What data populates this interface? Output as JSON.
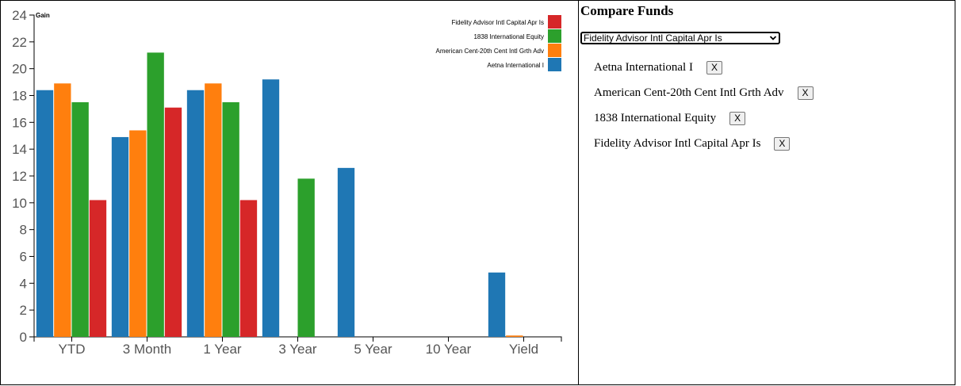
{
  "chart_data": {
    "type": "bar",
    "title": "",
    "xlabel": "",
    "ylabel": "Gain",
    "ylim": [
      0,
      24
    ],
    "yticks": [
      0,
      2,
      4,
      6,
      8,
      10,
      12,
      14,
      16,
      18,
      20,
      22,
      24
    ],
    "categories": [
      "YTD",
      "3 Month",
      "1 Year",
      "3 Year",
      "5 Year",
      "10 Year",
      "Yield"
    ],
    "series": [
      {
        "name": "Aetna International I",
        "color": "#1f77b4",
        "values": [
          18.4,
          14.9,
          18.4,
          19.2,
          12.6,
          0,
          4.8
        ]
      },
      {
        "name": "American Cent-20th Cent Intl Grth Adv",
        "color": "#ff7f0e",
        "values": [
          18.9,
          15.4,
          18.9,
          0,
          0,
          0,
          0.1
        ]
      },
      {
        "name": "1838 International Equity",
        "color": "#2ca02c",
        "values": [
          17.5,
          21.2,
          17.5,
          11.8,
          0,
          0,
          0
        ]
      },
      {
        "name": "Fidelity Advisor Intl Capital Apr Is",
        "color": "#d62728",
        "values": [
          10.2,
          17.1,
          10.2,
          0,
          0,
          0,
          0
        ]
      }
    ],
    "legend_order": [
      3,
      2,
      1,
      0
    ],
    "legend_position": "top-right",
    "grid": false
  },
  "compare": {
    "title": "Compare Funds",
    "select_value": "Fidelity Advisor Intl Capital Apr Is",
    "remove_label": "X",
    "funds": [
      "Aetna International I",
      "American Cent-20th Cent Intl Grth Adv",
      "1838 International Equity",
      "Fidelity Advisor Intl Capital Apr Is"
    ]
  }
}
